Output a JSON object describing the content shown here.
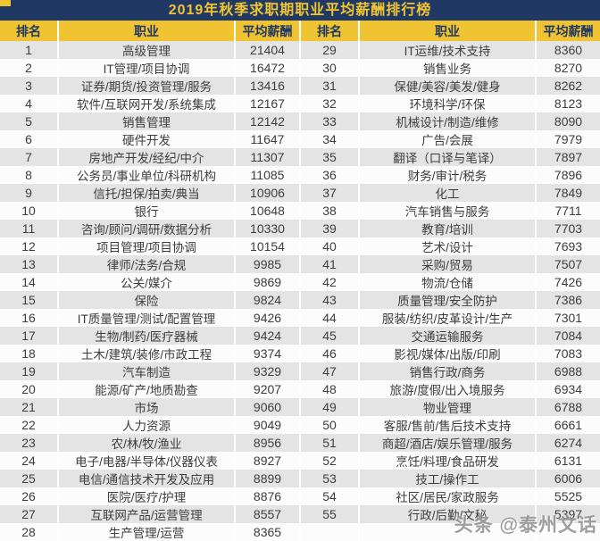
{
  "title": "2019年秋季求职期职业平均薪酬排行榜",
  "watermark": "头条 @泰州文话",
  "columns": [
    "排名",
    "职业",
    "平均薪酬"
  ],
  "colors": {
    "banner_bg": "#1F3864",
    "banner_text": "#F2C530",
    "header_bg": "#EFC331",
    "header_text": "#1F3864",
    "row_bg": "#FCFCFC",
    "row_alt_bg": "#E4E4E4",
    "data_text": "#3D3D3D"
  },
  "chart_data": {
    "type": "table",
    "title": "2019年秋季求职期职业平均薪酬排行榜",
    "columns": [
      "排名",
      "职业",
      "平均薪酬"
    ],
    "layout": "two column groups side by side, ranks 1-28 left, 29-55 right, odd ranks shaded gray",
    "rows": [
      [
        1,
        "高级管理",
        21404
      ],
      [
        2,
        "IT管理/项目协调",
        16472
      ],
      [
        3,
        "证券/期货/投资管理/服务",
        13416
      ],
      [
        4,
        "软件/互联网开发/系统集成",
        12167
      ],
      [
        5,
        "销售管理",
        12142
      ],
      [
        6,
        "硬件开发",
        11647
      ],
      [
        7,
        "房地产开发/经纪/中介",
        11307
      ],
      [
        8,
        "公务员/事业单位/科研机构",
        11085
      ],
      [
        9,
        "信托/担保/拍卖/典当",
        10906
      ],
      [
        10,
        "银行",
        10648
      ],
      [
        11,
        "咨询/顾问/调研/数据分析",
        10330
      ],
      [
        12,
        "项目管理/项目协调",
        10154
      ],
      [
        13,
        "律师/法务/合规",
        9985
      ],
      [
        14,
        "公关/媒介",
        9869
      ],
      [
        15,
        "保险",
        9824
      ],
      [
        16,
        "IT质量管理/测试/配置管理",
        9426
      ],
      [
        17,
        "生物/制药/医疗器械",
        9424
      ],
      [
        18,
        "土木/建筑/装修/市政工程",
        9374
      ],
      [
        19,
        "汽车制造",
        9329
      ],
      [
        20,
        "能源/矿产/地质勘查",
        9207
      ],
      [
        21,
        "市场",
        9060
      ],
      [
        22,
        "人力资源",
        9049
      ],
      [
        23,
        "农/林/牧/渔业",
        8956
      ],
      [
        24,
        "电子/电器/半导体/仪器仪表",
        8927
      ],
      [
        25,
        "电信/通信技术开发及应用",
        8899
      ],
      [
        26,
        "医院/医疗/护理",
        8876
      ],
      [
        27,
        "互联网产品/运营管理",
        8557
      ],
      [
        28,
        "生产管理/运营",
        8365
      ],
      [
        29,
        "IT运维/技术支持",
        8360
      ],
      [
        30,
        "销售业务",
        8270
      ],
      [
        31,
        "保健/美容/美发/健身",
        8262
      ],
      [
        32,
        "环境科学/环保",
        8123
      ],
      [
        33,
        "机械设计/制造/维修",
        8090
      ],
      [
        34,
        "广告/会展",
        7979
      ],
      [
        35,
        "翻译（口译与笔译）",
        7897
      ],
      [
        36,
        "财务/审计/税务",
        7896
      ],
      [
        37,
        "化工",
        7849
      ],
      [
        38,
        "汽车销售与服务",
        7711
      ],
      [
        39,
        "教育/培训",
        7703
      ],
      [
        40,
        "艺术/设计",
        7693
      ],
      [
        41,
        "采购/贸易",
        7507
      ],
      [
        42,
        "物流/仓储",
        7426
      ],
      [
        43,
        "质量管理/安全防护",
        7386
      ],
      [
        44,
        "服装/纺织/皮革设计/生产",
        7301
      ],
      [
        45,
        "交通运输服务",
        7084
      ],
      [
        46,
        "影视/媒体/出版/印刷",
        7083
      ],
      [
        47,
        "销售行政/商务",
        6988
      ],
      [
        48,
        "旅游/度假/出入境服务",
        6934
      ],
      [
        49,
        "物业管理",
        6788
      ],
      [
        50,
        "客服/售前/售后技术支持",
        6661
      ],
      [
        51,
        "商超/酒店/娱乐管理/服务",
        6274
      ],
      [
        52,
        "烹饪/料理/食品研发",
        6131
      ],
      [
        53,
        "技工/操作工",
        6006
      ],
      [
        54,
        "社区/居民/家政服务",
        5525
      ],
      [
        55,
        "行政/后勤/文秘",
        5397
      ]
    ]
  }
}
